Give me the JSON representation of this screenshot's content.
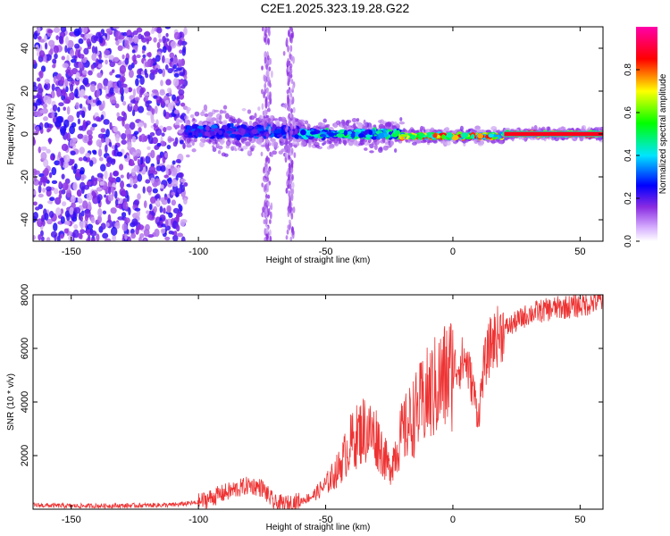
{
  "title": "C2E1.2025.323.19.28.G22",
  "chart_data": [
    {
      "type": "heatmap",
      "name": "spectrogram",
      "xlabel": "Height of straight line (km)",
      "ylabel": "Frequency (Hz)",
      "xlim": [
        -165,
        59
      ],
      "ylim": [
        -50,
        50
      ],
      "xticks": [
        -150,
        -100,
        -50,
        0,
        50
      ],
      "yticks": [
        -40,
        -20,
        0,
        20,
        40
      ],
      "colorbar": {
        "label": "Normalized spectral amplitude",
        "range": [
          0,
          1
        ],
        "ticks": [
          0.0,
          0.2,
          0.4,
          0.6,
          0.8
        ],
        "colormap": [
          "#ffffff",
          "#8a2be2",
          "#0000ff",
          "#00e5ff",
          "#00ff00",
          "#ffff00",
          "#ff0000",
          "#ff00aa"
        ]
      },
      "regions": [
        {
          "x_from": -165,
          "x_to": -105,
          "freq_spread": 50,
          "amplitude": 0.05,
          "desc": "scattered noise"
        },
        {
          "x_from": -105,
          "x_to": -60,
          "freq_center": 1,
          "freq_width": 6,
          "amplitude": 0.3
        },
        {
          "x_from": -60,
          "x_to": -20,
          "freq_center": 0,
          "freq_width": 4,
          "amplitude": 0.45
        },
        {
          "x_from": -20,
          "x_to": 20,
          "freq_center": -1,
          "freq_width": 2,
          "amplitude": 0.75
        },
        {
          "x_from": 20,
          "x_to": 59,
          "freq_center": 0,
          "freq_width": 1.5,
          "amplitude": 0.9
        }
      ]
    },
    {
      "type": "line",
      "name": "snr",
      "xlabel": "Height of straight line (km)",
      "ylabel": "SNR (10 * v/v)",
      "xlim": [
        -165,
        59
      ],
      "ylim": [
        0,
        8000
      ],
      "xticks": [
        -150,
        -100,
        -50,
        0,
        50
      ],
      "yticks": [
        2000,
        4000,
        6000,
        8000
      ],
      "color": "#ee3333",
      "series": [
        {
          "name": "SNR",
          "x": [
            -165,
            -150,
            -130,
            -110,
            -100,
            -90,
            -80,
            -75,
            -70,
            -65,
            -60,
            -55,
            -50,
            -45,
            -40,
            -35,
            -30,
            -25,
            -20,
            -15,
            -10,
            -5,
            0,
            5,
            8,
            10,
            12,
            15,
            20,
            25,
            30,
            40,
            50,
            59
          ],
          "y": [
            150,
            120,
            130,
            160,
            250,
            600,
            900,
            800,
            200,
            180,
            300,
            500,
            900,
            1500,
            2500,
            3000,
            2700,
            1500,
            2800,
            3500,
            4200,
            4700,
            5200,
            5600,
            4500,
            3400,
            5200,
            6200,
            6700,
            7000,
            7300,
            7500,
            7600,
            7800
          ]
        }
      ]
    }
  ]
}
